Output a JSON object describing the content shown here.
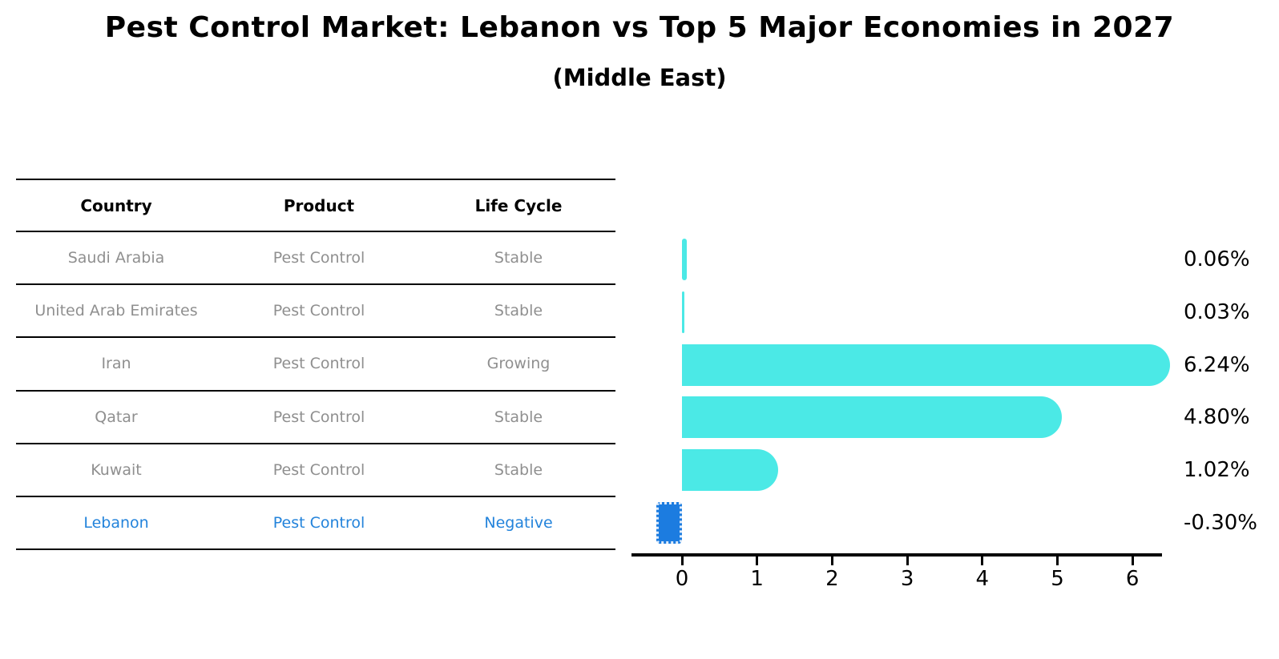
{
  "title": "Pest Control Market: Lebanon vs Top 5 Major Economies in 2027",
  "subtitle": "(Middle East)",
  "table": {
    "headers": [
      "Country",
      "Product",
      "Life Cycle"
    ],
    "rows": [
      {
        "country": "Saudi Arabia",
        "product": "Pest Control",
        "life_cycle": "Stable",
        "highlight": false
      },
      {
        "country": "United Arab Emirates",
        "product": "Pest Control",
        "life_cycle": "Stable",
        "highlight": false
      },
      {
        "country": "Iran",
        "product": "Pest Control",
        "life_cycle": "Growing",
        "highlight": false
      },
      {
        "country": "Qatar",
        "product": "Pest Control",
        "life_cycle": "Stable",
        "highlight": false
      },
      {
        "country": "Kuwait",
        "product": "Pest Control",
        "life_cycle": "Stable",
        "highlight": false
      },
      {
        "country": "Lebanon",
        "product": "Pest Control",
        "life_cycle": "Negative",
        "highlight": true
      }
    ]
  },
  "chart_data": {
    "type": "bar",
    "orientation": "horizontal",
    "title": "Pest Control Market: Lebanon vs Top 5 Major Economies in 2027",
    "subtitle": "(Middle East)",
    "categories": [
      "Saudi Arabia",
      "United Arab Emirates",
      "Iran",
      "Qatar",
      "Kuwait",
      "Lebanon"
    ],
    "values": [
      0.06,
      0.03,
      6.24,
      4.8,
      1.02,
      -0.3
    ],
    "value_labels": [
      "0.06%",
      "0.03%",
      "6.24%",
      "4.80%",
      "1.02%",
      "-0.30%"
    ],
    "xlabel": "",
    "ylabel": "",
    "xticks": [
      0,
      1,
      2,
      3,
      4,
      5,
      6
    ],
    "xlim": [
      -0.67,
      6.4
    ],
    "grid": false,
    "legend": false,
    "colors": {
      "bar": "#4be9e6",
      "highlight_bar": "#1c7ce0",
      "highlight_text": "#2383db",
      "table_text": "#8f8f8f",
      "axis": "#000000"
    }
  }
}
